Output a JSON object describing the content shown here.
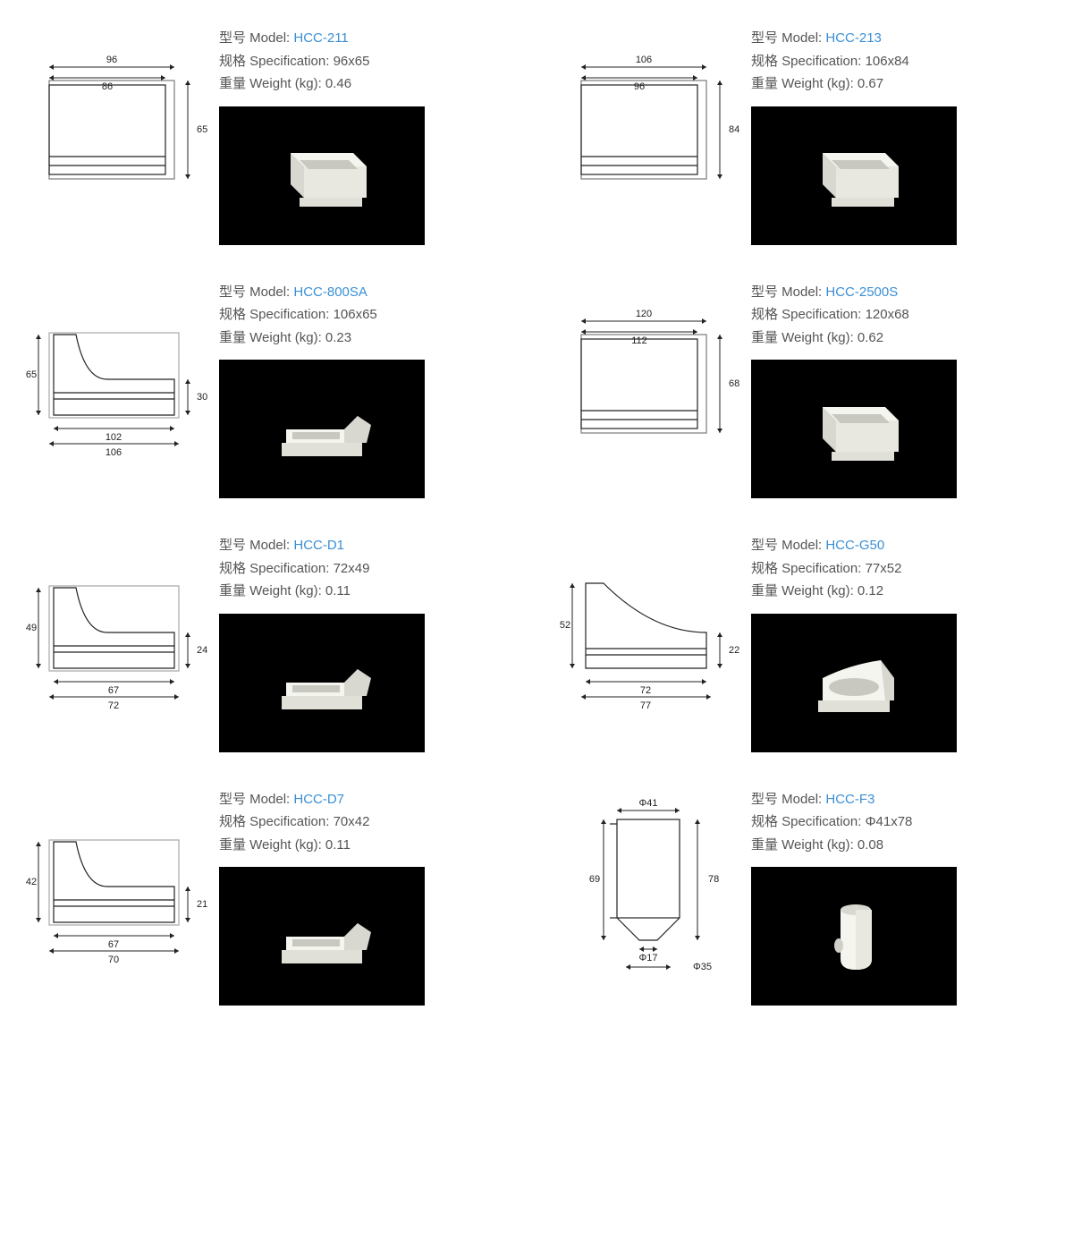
{
  "labels": {
    "model": "型号 Model:",
    "spec": "规格 Specification:",
    "weight": "重量 Weight (kg):"
  },
  "colors": {
    "text": "#555555",
    "accent": "#3a8fd6",
    "line": "#222222",
    "photo_bg": "#000000",
    "ceramic_light": "#f5f5f0",
    "ceramic_shadow": "#d8d8d0"
  },
  "products": [
    {
      "model": "HCC-211",
      "spec": "96x65",
      "weight": "0.46",
      "diagram": "box",
      "dims": {
        "w1": "96",
        "w2": "86",
        "h": "65"
      },
      "photo_shape": "crucible_box"
    },
    {
      "model": "HCC-213",
      "spec": "106x84",
      "weight": "0.67",
      "diagram": "box",
      "dims": {
        "w1": "106",
        "w2": "96",
        "h": "84"
      },
      "photo_shape": "crucible_box"
    },
    {
      "model": "HCC-800SA",
      "spec": "106x65",
      "weight": "0.23",
      "diagram": "wedge",
      "dims": {
        "w1": "106",
        "w2": "102",
        "h1": "65",
        "h2": "30"
      },
      "photo_shape": "crucible_wedge"
    },
    {
      "model": "HCC-2500S",
      "spec": "120x68",
      "weight": "0.62",
      "diagram": "box",
      "dims": {
        "w1": "120",
        "w2": "112",
        "h": "68"
      },
      "photo_shape": "crucible_box"
    },
    {
      "model": "HCC-D1",
      "spec": "72x49",
      "weight": "0.11",
      "diagram": "wedge",
      "dims": {
        "w1": "72",
        "w2": "67",
        "h1": "49",
        "h2": "24"
      },
      "photo_shape": "crucible_wedge"
    },
    {
      "model": "HCC-G50",
      "spec": "77x52",
      "weight": "0.12",
      "diagram": "curve",
      "dims": {
        "w1": "77",
        "w2": "72",
        "h1": "52",
        "h2": "22"
      },
      "photo_shape": "crucible_curve"
    },
    {
      "model": "HCC-D7",
      "spec": "70x42",
      "weight": "0.11",
      "diagram": "wedge",
      "dims": {
        "w1": "70",
        "w2": "67",
        "h1": "42",
        "h2": "21"
      },
      "photo_shape": "crucible_wedge"
    },
    {
      "model": "HCC-F3",
      "spec": "Φ41x78",
      "weight": "0.08",
      "diagram": "cup",
      "dims": {
        "d1": "Φ41",
        "d2": "Φ17",
        "d3": "Φ35",
        "h1": "78",
        "h2": "69"
      },
      "photo_shape": "crucible_cup"
    }
  ]
}
